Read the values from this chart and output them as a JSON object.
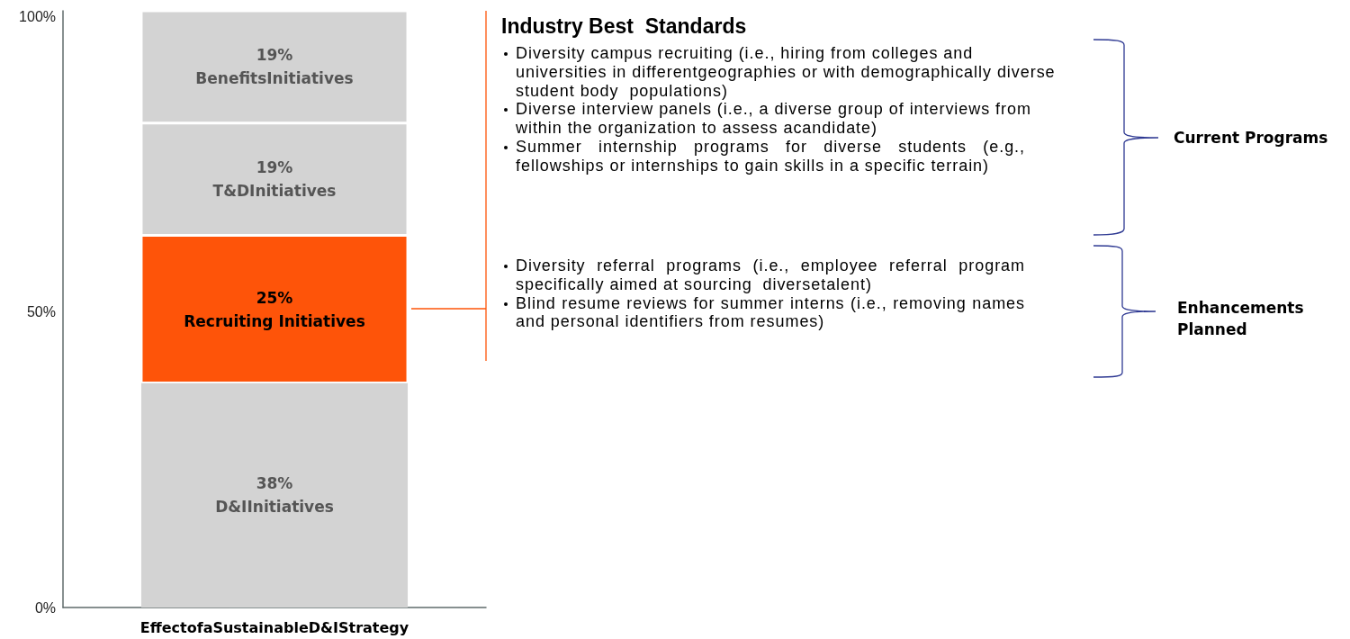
{
  "chart_data": {
    "type": "bar",
    "stacked": true,
    "categories": [
      "EffectofaSustainableD&IStrategy"
    ],
    "series": [
      {
        "name": "D&IInitiatives",
        "color": "#d3d3d3",
        "values": [
          38
        ],
        "value_labels": [
          "38%"
        ]
      },
      {
        "name": "Recruiting Initiatives",
        "color": "#fe5409",
        "values": [
          25
        ],
        "value_labels": [
          "25%"
        ]
      },
      {
        "name": "T&DInitiatives",
        "color": "#d3d3d3",
        "values": [
          19
        ],
        "value_labels": [
          "19%"
        ]
      },
      {
        "name": "BenefitsInitiatives",
        "color": "#d3d3d3",
        "values": [
          19
        ],
        "value_labels": [
          "19%"
        ]
      }
    ],
    "ylim": [
      0,
      101
    ],
    "yticks": [
      {
        "value": 0,
        "label": "0%"
      },
      {
        "value": 50,
        "label": "50%"
      },
      {
        "value": 100,
        "label": "100%"
      }
    ],
    "grid": false,
    "legend": false,
    "annotations": [
      "Industry Best  Standards",
      "Diversity campus recruiting (i.e., hiring from colleges and universities in differentgeographies or with demographically diverse student body  populations)",
      "Diverse interview panels (i.e., a diverse group of interviews from within the organization to assess acandidate)",
      "Summer internship programs for diverse students (e.g., fellowships or internships to gain skills in a specific terrain)",
      "Diversity referral programs (i.e., employee referral program specifically aimed at sourcing  diversetalent)",
      "Blind resume reviews for summer interns (i.e., removing names and personal identifiers from resumes)",
      "Current Programs",
      "Enhancements Planned"
    ]
  }
}
